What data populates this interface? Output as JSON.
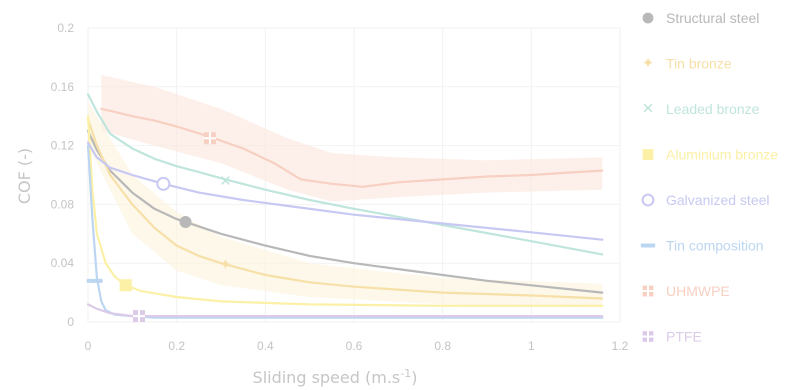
{
  "chart_data": {
    "type": "line",
    "title": "",
    "xlabel": "Sliding speed (m.s",
    "xlabel_sup": "-1",
    "xlabel_tail": ")",
    "ylabel": "COF (-)",
    "xlim": [
      0,
      1.2
    ],
    "ylim": [
      0,
      0.2
    ],
    "xticks": [
      "0",
      "0.2",
      "0.4",
      "0.6",
      "0.8",
      "1",
      "1.2"
    ],
    "yticks": [
      "0",
      "0.04",
      "0.08",
      "0.12",
      "0.16",
      "0.2"
    ],
    "xtick_values": [
      0,
      0.2,
      0.4,
      0.6,
      0.8,
      1.0,
      1.2
    ],
    "ytick_values": [
      0,
      0.04,
      0.08,
      0.12,
      0.16,
      0.2
    ],
    "grid": true,
    "legend_position": "right",
    "series": [
      {
        "name": "Structural steel",
        "marker": "circle-filled",
        "marker_glyph": "",
        "color": "#b8b8b8",
        "marker_point": [
          0.22,
          0.068
        ],
        "x": [
          0,
          0.02,
          0.05,
          0.1,
          0.15,
          0.2,
          0.3,
          0.4,
          0.5,
          0.6,
          0.7,
          0.8,
          0.9,
          1.0,
          1.16
        ],
        "y": [
          0.13,
          0.117,
          0.103,
          0.088,
          0.077,
          0.07,
          0.06,
          0.052,
          0.045,
          0.04,
          0.036,
          0.032,
          0.028,
          0.025,
          0.02
        ]
      },
      {
        "name": "Tin bronze",
        "marker": "star",
        "marker_glyph": "✦",
        "color": "#f7e0a8",
        "marker_point": [
          0.31,
          0.039
        ],
        "x": [
          0,
          0.02,
          0.05,
          0.1,
          0.15,
          0.2,
          0.25,
          0.3,
          0.4,
          0.5,
          0.6,
          0.8,
          1.0,
          1.16
        ],
        "y": [
          0.138,
          0.12,
          0.1,
          0.08,
          0.064,
          0.052,
          0.045,
          0.04,
          0.032,
          0.027,
          0.024,
          0.02,
          0.018,
          0.016
        ]
      },
      {
        "name": "Leaded bronze",
        "marker": "x",
        "marker_glyph": "✕",
        "color": "#bfe5dc",
        "marker_point": [
          0.31,
          0.096
        ],
        "x": [
          0,
          0.02,
          0.05,
          0.1,
          0.15,
          0.2,
          0.25,
          0.31,
          0.4,
          0.5,
          0.6,
          0.8,
          1.0,
          1.16
        ],
        "y": [
          0.155,
          0.143,
          0.128,
          0.118,
          0.111,
          0.106,
          0.102,
          0.097,
          0.09,
          0.083,
          0.077,
          0.066,
          0.055,
          0.046
        ]
      },
      {
        "name": "Aluminium bronze",
        "marker": "square-filled",
        "marker_glyph": "",
        "color": "#fbf0a6",
        "marker_point": [
          0.085,
          0.025
        ],
        "x": [
          0,
          0.01,
          0.02,
          0.04,
          0.06,
          0.085,
          0.12,
          0.2,
          0.3,
          0.5,
          0.8,
          1.16
        ],
        "y": [
          0.14,
          0.09,
          0.06,
          0.04,
          0.031,
          0.025,
          0.021,
          0.017,
          0.014,
          0.012,
          0.011,
          0.011
        ]
      },
      {
        "name": "Galvanized steel",
        "marker": "circle-open",
        "marker_glyph": "",
        "color": "#c7c9f2",
        "marker_point": [
          0.17,
          0.094
        ],
        "x": [
          0,
          0.02,
          0.05,
          0.1,
          0.17,
          0.25,
          0.35,
          0.45,
          0.6,
          0.8,
          1.0,
          1.16
        ],
        "y": [
          0.122,
          0.112,
          0.105,
          0.1,
          0.094,
          0.088,
          0.083,
          0.079,
          0.073,
          0.067,
          0.061,
          0.056
        ]
      },
      {
        "name": "Tin composition",
        "marker": "dash",
        "marker_glyph": "",
        "color": "#bcd6f2",
        "marker_point": [
          0.015,
          0.028
        ],
        "x": [
          0,
          0.01,
          0.02,
          0.03,
          0.04,
          0.06,
          0.1,
          0.15,
          0.3,
          0.6,
          1.16
        ],
        "y": [
          0.12,
          0.07,
          0.03,
          0.014,
          0.008,
          0.005,
          0.004,
          0.003,
          0.003,
          0.003,
          0.003
        ]
      },
      {
        "name": "UHMWPE",
        "marker": "square-cross",
        "marker_glyph": "",
        "color": "#f7d0c2",
        "marker_point": [
          0.275,
          0.125
        ],
        "x": [
          0.03,
          0.06,
          0.1,
          0.15,
          0.2,
          0.275,
          0.35,
          0.42,
          0.48,
          0.55,
          0.62,
          0.7,
          0.8,
          0.9,
          1.0,
          1.1,
          1.16
        ],
        "y": [
          0.145,
          0.143,
          0.14,
          0.137,
          0.133,
          0.126,
          0.118,
          0.108,
          0.097,
          0.094,
          0.092,
          0.095,
          0.097,
          0.099,
          0.1,
          0.102,
          0.103
        ]
      },
      {
        "name": "PTFE",
        "marker": "square-cross",
        "marker_glyph": "",
        "color": "#dccbe8",
        "marker_point": [
          0.115,
          0.004
        ],
        "x": [
          0,
          0.02,
          0.05,
          0.1,
          0.2,
          0.4,
          0.6,
          0.8,
          1.0,
          1.16
        ],
        "y": [
          0.012,
          0.009,
          0.006,
          0.004,
          0.004,
          0.004,
          0.004,
          0.004,
          0.004,
          0.004
        ]
      }
    ],
    "bands": [
      {
        "series": "UHMWPE",
        "color": "#fbe6de",
        "x": [
          0.03,
          0.15,
          0.3,
          0.45,
          0.55,
          0.7,
          0.9,
          1.16
        ],
        "upper": [
          0.168,
          0.16,
          0.145,
          0.125,
          0.115,
          0.112,
          0.11,
          0.112
        ],
        "lower": [
          0.13,
          0.12,
          0.108,
          0.09,
          0.082,
          0.085,
          0.088,
          0.09
        ]
      },
      {
        "series": "Tin bronze",
        "color": "#fdf4dc",
        "x": [
          0,
          0.1,
          0.2,
          0.3,
          0.5,
          0.8,
          1.16
        ],
        "upper": [
          0.15,
          0.1,
          0.075,
          0.058,
          0.04,
          0.03,
          0.026
        ],
        "lower": [
          0.12,
          0.06,
          0.035,
          0.025,
          0.017,
          0.012,
          0.01
        ]
      }
    ]
  }
}
